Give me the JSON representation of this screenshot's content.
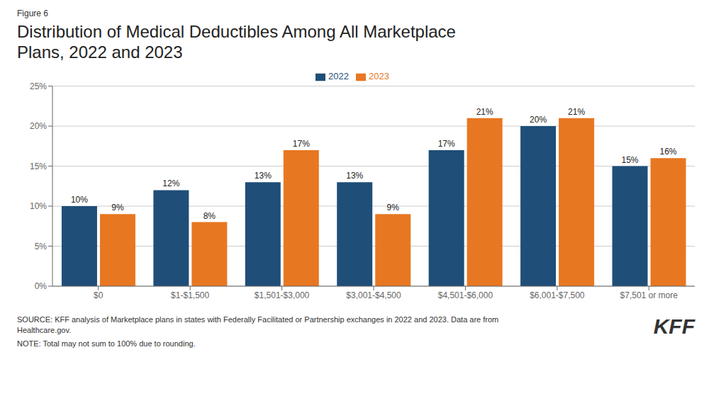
{
  "chart_data": {
    "type": "bar",
    "title": "Distribution of Medical Deductibles Among All Marketplace\nPlans, 2022 and 2023",
    "categories": [
      "$0",
      "$1-$1,500",
      "$1,501-$3,000",
      "$3,001-$4,500",
      "$4,501-$6,000",
      "$6,001-$7,500",
      "$7,501 or more"
    ],
    "series": [
      {
        "name": "2022",
        "color": "#1F4E79",
        "values": [
          10,
          12,
          13,
          13,
          17,
          20,
          15
        ],
        "value_labels": [
          "10%",
          "12%",
          "13%",
          "13%",
          "17%",
          "20%",
          "15%"
        ]
      },
      {
        "name": "2023",
        "color": "#E87722",
        "values": [
          9,
          8,
          17,
          9,
          21,
          21,
          16
        ],
        "value_labels": [
          "9%",
          "8%",
          "17%",
          "9%",
          "21%",
          "21%",
          "16%"
        ]
      }
    ],
    "ylim": [
      0,
      25
    ],
    "yticks": [
      {
        "value": 0,
        "label": "0%"
      },
      {
        "value": 5,
        "label": "5%"
      },
      {
        "value": 10,
        "label": "10%"
      },
      {
        "value": 15,
        "label": "15%"
      },
      {
        "value": 20,
        "label": "20%"
      },
      {
        "value": 25,
        "label": "25%"
      }
    ],
    "grid": true,
    "legend": "top",
    "data_labels": true,
    "annotations": [
      "Figure 6",
      "SOURCE: KFF analysis of Marketplace plans in states with Federally Facilitated or Partnership exchanges in 2022 and 2023. Data are from\nHealthcare.gov.",
      "NOTE: Total may not sum to 100% due to rounding.",
      "KFF"
    ]
  }
}
